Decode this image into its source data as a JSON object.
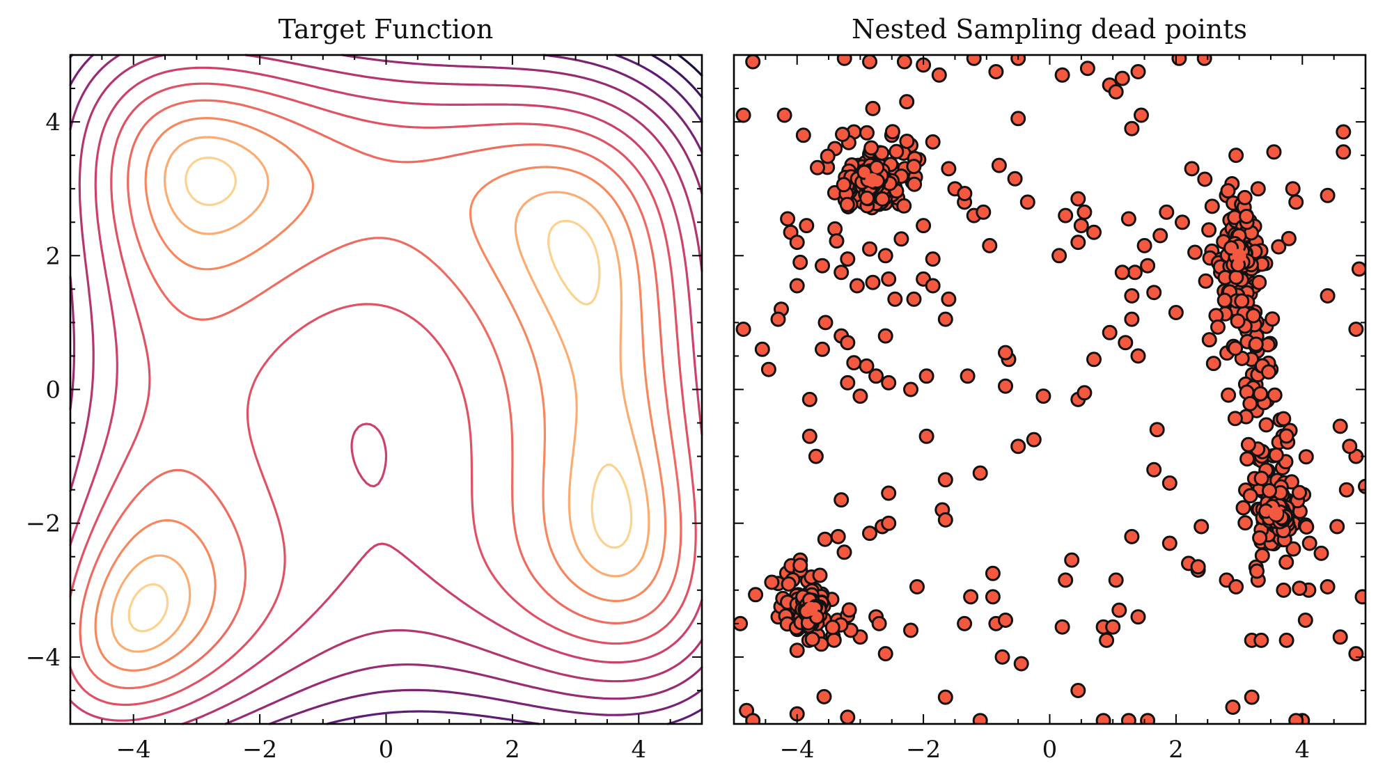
{
  "chart_data": [
    {
      "type": "contour",
      "title": "Target Function",
      "function": "himmelblau: -((x^2 + y - 11)^2 + (x + y^2 - 7)^2)",
      "xlim": [
        -5,
        5
      ],
      "ylim": [
        -5,
        5
      ],
      "xticks": [
        -4,
        -2,
        0,
        2,
        4
      ],
      "yticks": [
        -4,
        -2,
        0,
        2,
        4
      ],
      "xtick_labels": [
        "−4",
        "−2",
        "0",
        "2",
        "4"
      ],
      "ytick_labels": [
        "−4",
        "−2",
        "0",
        "2",
        "4"
      ],
      "contour_levels": [
        5,
        20,
        45,
        80,
        125,
        180,
        250,
        330,
        420,
        520,
        630,
        750
      ],
      "colormap": "magma",
      "level_colors": [
        "#fdd28f",
        "#fcac70",
        "#f8875e",
        "#ef6a5f",
        "#e05263",
        "#cc4169",
        "#b3366f",
        "#972c74",
        "#7a2276",
        "#5c1b74",
        "#3e1462",
        "#1e0e3c"
      ],
      "grid": false
    },
    {
      "type": "scatter",
      "title": "Nested Sampling dead points",
      "xlim": [
        -5,
        5
      ],
      "ylim": [
        -5,
        5
      ],
      "xticks": [
        -4,
        -2,
        0,
        2,
        4
      ],
      "xtick_labels": [
        "−4",
        "−2",
        "0",
        "2",
        "4"
      ],
      "yticks": [
        -4,
        -2,
        0,
        2,
        4
      ],
      "ytick_labels_shown": false,
      "marker_color": "#f4593f",
      "marker_edge": "#111111",
      "cluster_centers": [
        [
          -2.81,
          3.13
        ],
        [
          3.0,
          2.0
        ],
        [
          3.58,
          -1.85
        ],
        [
          -3.78,
          -3.28
        ]
      ],
      "points": [
        [
          -4.85,
          4.1
        ],
        [
          -4.7,
          4.9
        ],
        [
          -4.2,
          4.1
        ],
        [
          -3.9,
          3.8
        ],
        [
          -3.25,
          4.95
        ],
        [
          -2.85,
          4.9
        ],
        [
          -2.3,
          4.9
        ],
        [
          -2.0,
          4.85
        ],
        [
          -1.75,
          4.7
        ],
        [
          -1.2,
          4.95
        ],
        [
          -0.85,
          4.75
        ],
        [
          -0.5,
          4.95
        ],
        [
          0.2,
          4.7
        ],
        [
          0.6,
          4.8
        ],
        [
          1.15,
          4.65
        ],
        [
          1.4,
          4.75
        ],
        [
          2.05,
          4.95
        ],
        [
          2.45,
          4.95
        ],
        [
          -2.8,
          4.2
        ],
        [
          -3.4,
          3.6
        ],
        [
          -3.1,
          3.85
        ],
        [
          -2.5,
          3.8
        ],
        [
          -2.2,
          3.65
        ],
        [
          -1.85,
          3.7
        ],
        [
          -1.6,
          3.3
        ],
        [
          -1.5,
          3.0
        ],
        [
          -1.35,
          2.8
        ],
        [
          -1.2,
          2.6
        ],
        [
          -1.05,
          2.65
        ],
        [
          -0.8,
          3.35
        ],
        [
          -0.55,
          3.15
        ],
        [
          -0.35,
          2.8
        ],
        [
          -0.5,
          4.05
        ],
        [
          -0.95,
          2.15
        ],
        [
          0.95,
          4.55
        ],
        [
          1.05,
          4.45
        ],
        [
          1.3,
          3.9
        ],
        [
          1.45,
          4.1
        ],
        [
          2.25,
          3.3
        ],
        [
          2.95,
          3.5
        ],
        [
          3.55,
          3.55
        ],
        [
          -4.15,
          2.55
        ],
        [
          -4.1,
          2.35
        ],
        [
          -4.0,
          2.2
        ],
        [
          -3.85,
          2.45
        ],
        [
          -3.95,
          1.9
        ],
        [
          -4.0,
          1.55
        ],
        [
          -3.6,
          1.85
        ],
        [
          -3.4,
          2.4
        ],
        [
          -3.3,
          1.75
        ],
        [
          -3.2,
          1.95
        ],
        [
          -2.85,
          2.1
        ],
        [
          -2.6,
          2.0
        ],
        [
          -2.35,
          2.25
        ],
        [
          -2.0,
          2.45
        ],
        [
          -1.85,
          1.95
        ],
        [
          -2.0,
          1.65
        ],
        [
          -1.85,
          1.55
        ],
        [
          -1.6,
          1.35
        ],
        [
          -2.55,
          1.65
        ],
        [
          -2.8,
          1.6
        ],
        [
          -3.05,
          1.55
        ],
        [
          -2.45,
          1.35
        ],
        [
          -2.15,
          1.35
        ],
        [
          -1.65,
          1.05
        ],
        [
          0.25,
          2.6
        ],
        [
          0.45,
          2.85
        ],
        [
          0.55,
          2.65
        ],
        [
          0.5,
          2.45
        ],
        [
          0.7,
          2.35
        ],
        [
          1.25,
          2.55
        ],
        [
          1.5,
          2.15
        ],
        [
          1.85,
          2.65
        ],
        [
          1.75,
          2.3
        ],
        [
          2.1,
          2.5
        ],
        [
          2.3,
          2.05
        ],
        [
          1.55,
          1.85
        ],
        [
          1.35,
          1.75
        ],
        [
          1.15,
          1.75
        ],
        [
          1.3,
          1.4
        ],
        [
          1.65,
          1.45
        ],
        [
          2.0,
          1.15
        ],
        [
          2.8,
          2.9
        ],
        [
          3.3,
          3.0
        ],
        [
          3.85,
          3.0
        ],
        [
          3.9,
          2.8
        ],
        [
          4.4,
          2.9
        ],
        [
          4.65,
          3.55
        ],
        [
          4.65,
          3.85
        ],
        [
          4.9,
          1.8
        ],
        [
          4.4,
          1.4
        ],
        [
          4.85,
          0.9
        ],
        [
          0.45,
          2.2
        ],
        [
          0.15,
          2.0
        ],
        [
          -4.85,
          0.9
        ],
        [
          -4.25,
          1.2
        ],
        [
          -4.3,
          1.05
        ],
        [
          -4.55,
          0.6
        ],
        [
          -4.45,
          0.3
        ],
        [
          -3.55,
          1.0
        ],
        [
          -3.3,
          0.8
        ],
        [
          -3.2,
          0.7
        ],
        [
          -2.6,
          0.8
        ],
        [
          -3.6,
          0.6
        ],
        [
          -3.1,
          0.4
        ],
        [
          -2.9,
          0.35
        ],
        [
          -3.2,
          0.1
        ],
        [
          -2.75,
          0.2
        ],
        [
          -3.0,
          -0.1
        ],
        [
          -2.55,
          0.1
        ],
        [
          -2.2,
          0.0
        ],
        [
          -1.95,
          0.2
        ],
        [
          -1.3,
          0.2
        ],
        [
          -0.65,
          0.45
        ],
        [
          -0.7,
          0.55
        ],
        [
          -0.7,
          0.05
        ],
        [
          -3.8,
          -0.15
        ],
        [
          -3.8,
          -0.7
        ],
        [
          -3.7,
          -1.0
        ],
        [
          -0.1,
          -0.1
        ],
        [
          0.45,
          -0.15
        ],
        [
          0.55,
          -0.05
        ],
        [
          0.7,
          0.45
        ],
        [
          0.95,
          0.85
        ],
        [
          1.2,
          0.7
        ],
        [
          1.3,
          1.05
        ],
        [
          1.4,
          0.5
        ],
        [
          -1.95,
          -0.7
        ],
        [
          -1.65,
          -1.35
        ],
        [
          -1.7,
          -1.8
        ],
        [
          -1.65,
          -1.95
        ],
        [
          -1.1,
          -1.25
        ],
        [
          -0.5,
          -0.85
        ],
        [
          -0.25,
          -0.75
        ],
        [
          -2.55,
          -1.55
        ],
        [
          -3.3,
          -1.65
        ],
        [
          1.65,
          -1.2
        ],
        [
          1.7,
          -0.6
        ],
        [
          1.9,
          -1.4
        ],
        [
          -3.35,
          -2.2
        ],
        [
          -2.85,
          -2.15
        ],
        [
          -2.65,
          -2.05
        ],
        [
          -2.55,
          -2.0
        ],
        [
          -2.1,
          -2.95
        ],
        [
          -2.75,
          -3.4
        ],
        [
          -2.7,
          -3.5
        ],
        [
          -2.6,
          -3.95
        ],
        [
          -2.2,
          -3.6
        ],
        [
          -3.0,
          -3.7
        ],
        [
          -3.3,
          -3.5
        ],
        [
          -3.15,
          -3.6
        ],
        [
          -3.2,
          -4.9
        ],
        [
          -4.3,
          -2.9
        ],
        [
          -3.95,
          -2.55
        ],
        [
          -4.0,
          -3.9
        ],
        [
          -4.3,
          -3.4
        ],
        [
          -4.9,
          -3.5
        ],
        [
          -4.8,
          -4.8
        ],
        [
          -4.7,
          -4.95
        ],
        [
          -4.0,
          -4.85
        ],
        [
          -1.25,
          -3.1
        ],
        [
          -1.35,
          -3.5
        ],
        [
          -0.9,
          -3.1
        ],
        [
          -0.85,
          -3.5
        ],
        [
          -0.9,
          -2.75
        ],
        [
          -0.7,
          -3.45
        ],
        [
          -0.75,
          -4.0
        ],
        [
          -0.45,
          -4.1
        ],
        [
          -1.1,
          -4.95
        ],
        [
          0.25,
          -2.85
        ],
        [
          0.35,
          -2.55
        ],
        [
          0.2,
          -3.55
        ],
        [
          0.45,
          -4.5
        ],
        [
          0.85,
          -3.55
        ],
        [
          0.9,
          -3.75
        ],
        [
          0.85,
          -4.95
        ],
        [
          1.05,
          -2.85
        ],
        [
          1.1,
          -3.3
        ],
        [
          1.0,
          -3.55
        ],
        [
          1.25,
          -4.95
        ],
        [
          1.3,
          -2.2
        ],
        [
          1.4,
          -3.4
        ],
        [
          1.55,
          -4.95
        ],
        [
          1.9,
          -2.3
        ],
        [
          2.2,
          -2.6
        ],
        [
          2.35,
          -2.7
        ],
        [
          2.35,
          -2.65
        ],
        [
          2.4,
          -2.05
        ],
        [
          2.8,
          -2.85
        ],
        [
          2.95,
          -2.95
        ],
        [
          3.2,
          -3.75
        ],
        [
          3.35,
          -3.75
        ],
        [
          3.3,
          -2.85
        ],
        [
          3.75,
          -3.75
        ],
        [
          4.1,
          -3.0
        ],
        [
          4.4,
          -2.95
        ],
        [
          4.05,
          -3.45
        ],
        [
          4.6,
          -3.7
        ],
        [
          4.85,
          -3.95
        ],
        [
          4.0,
          -4.95
        ],
        [
          3.9,
          -4.95
        ],
        [
          2.9,
          -4.75
        ],
        [
          3.2,
          -4.6
        ],
        [
          4.95,
          -3.1
        ],
        [
          4.3,
          -2.45
        ],
        [
          4.55,
          -2.05
        ],
        [
          4.7,
          -1.5
        ],
        [
          5.0,
          -1.45
        ],
        [
          4.85,
          -1.0
        ],
        [
          4.75,
          -0.85
        ],
        [
          4.6,
          -0.55
        ],
        [
          -1.65,
          -4.6
        ]
      ]
    }
  ]
}
